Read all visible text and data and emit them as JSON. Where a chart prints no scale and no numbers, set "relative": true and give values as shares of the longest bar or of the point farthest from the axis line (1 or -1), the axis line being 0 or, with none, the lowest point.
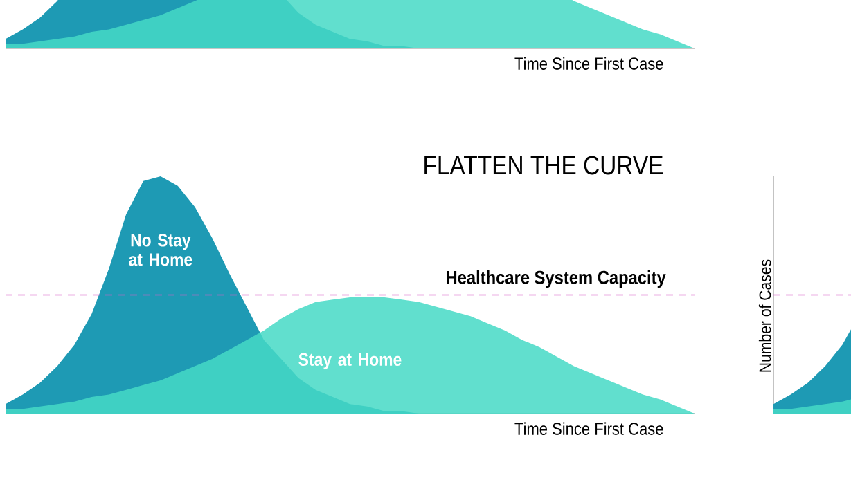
{
  "chart_data": [
    {
      "type": "area",
      "relative": true,
      "xlabel": "Time Since First Case",
      "categories": [
        null,
        null,
        null,
        null,
        null,
        null,
        null,
        null,
        null,
        null,
        null,
        null,
        null,
        null,
        null,
        null,
        null,
        null,
        null,
        null,
        null,
        null,
        null,
        null,
        null,
        null,
        null,
        null,
        null,
        null,
        null,
        null,
        null,
        null,
        null,
        null,
        null,
        null,
        null,
        null,
        null
      ],
      "series": [
        {
          "color": "#1e9ab4",
          "values": [
            0.04,
            0.08,
            0.13,
            0.2,
            0.29,
            0.42,
            0.61,
            0.84,
            0.98,
            1.0,
            0.96,
            0.87,
            0.74,
            0.59,
            0.45,
            0.31,
            0.23,
            0.15,
            0.1,
            0.07,
            0.04,
            0.03,
            0.01,
            0.01,
            0,
            0,
            0,
            0,
            0,
            0,
            0,
            0,
            0,
            0,
            0,
            0,
            0,
            0,
            0,
            0,
            0
          ]
        },
        {
          "color": "#45d9c6",
          "values": [
            0.02,
            0.02,
            0.03,
            0.04,
            0.05,
            0.07,
            0.08,
            0.1,
            0.12,
            0.14,
            0.17,
            0.2,
            0.23,
            0.27,
            0.31,
            0.35,
            0.4,
            0.44,
            0.47,
            0.48,
            0.49,
            0.49,
            0.49,
            0.48,
            0.47,
            0.45,
            0.43,
            0.41,
            0.38,
            0.35,
            0.31,
            0.28,
            0.24,
            0.2,
            0.17,
            0.14,
            0.11,
            0.08,
            0.06,
            0.03,
            0
          ]
        }
      ]
    },
    {
      "type": "area",
      "relative": true,
      "title": "FLATTEN THE CURVE",
      "xlabel": "Time Since First Case",
      "categories": [
        null,
        null,
        null,
        null,
        null,
        null,
        null,
        null,
        null,
        null,
        null,
        null,
        null,
        null,
        null,
        null,
        null,
        null,
        null,
        null,
        null,
        null,
        null,
        null,
        null,
        null,
        null,
        null,
        null,
        null,
        null,
        null,
        null,
        null,
        null,
        null,
        null,
        null,
        null,
        null,
        null
      ],
      "series": [
        {
          "name": "No Stay at Home",
          "color": "#1e9ab4",
          "values": [
            0.04,
            0.08,
            0.13,
            0.2,
            0.29,
            0.42,
            0.61,
            0.84,
            0.98,
            1.0,
            0.96,
            0.87,
            0.74,
            0.59,
            0.45,
            0.31,
            0.23,
            0.15,
            0.1,
            0.07,
            0.04,
            0.03,
            0.01,
            0.01,
            0,
            0,
            0,
            0,
            0,
            0,
            0,
            0,
            0,
            0,
            0,
            0,
            0,
            0,
            0,
            0,
            0
          ]
        },
        {
          "name": "Stay at Home",
          "color": "#45d9c6",
          "values": [
            0.02,
            0.02,
            0.03,
            0.04,
            0.05,
            0.07,
            0.08,
            0.1,
            0.12,
            0.14,
            0.17,
            0.2,
            0.23,
            0.27,
            0.31,
            0.35,
            0.4,
            0.44,
            0.47,
            0.48,
            0.49,
            0.49,
            0.49,
            0.48,
            0.47,
            0.45,
            0.43,
            0.41,
            0.38,
            0.35,
            0.31,
            0.28,
            0.24,
            0.2,
            0.17,
            0.14,
            0.11,
            0.08,
            0.06,
            0.03,
            0
          ]
        }
      ],
      "ref_lines": [
        {
          "axis": "y",
          "value": 0.5,
          "label": "Healthcare System Capacity",
          "color": "#d660c8",
          "line_style": "dashed"
        }
      ]
    },
    {
      "type": "area",
      "relative": true,
      "ylabel": "Number of Cases",
      "categories": [
        null,
        null,
        null,
        null,
        null,
        null,
        null,
        null,
        null,
        null,
        null,
        null,
        null,
        null,
        null,
        null,
        null,
        null,
        null,
        null,
        null,
        null,
        null,
        null,
        null,
        null,
        null,
        null,
        null,
        null,
        null,
        null,
        null,
        null,
        null,
        null,
        null,
        null,
        null,
        null,
        null
      ],
      "series": [
        {
          "color": "#1e9ab4",
          "values": [
            0.04,
            0.08,
            0.13,
            0.2,
            0.29,
            0.42,
            0.61,
            0.84,
            0.98,
            1.0,
            0.96,
            0.87,
            0.74,
            0.59,
            0.45,
            0.31,
            0.23,
            0.15,
            0.1,
            0.07,
            0.04,
            0.03,
            0.01,
            0.01,
            0,
            0,
            0,
            0,
            0,
            0,
            0,
            0,
            0,
            0,
            0,
            0,
            0,
            0,
            0,
            0,
            0
          ]
        },
        {
          "color": "#45d9c6",
          "values": [
            0.02,
            0.02,
            0.03,
            0.04,
            0.05,
            0.07,
            0.08,
            0.1,
            0.12,
            0.14,
            0.17,
            0.2,
            0.23,
            0.27,
            0.31,
            0.35,
            0.4,
            0.44,
            0.47,
            0.48,
            0.49,
            0.49,
            0.49,
            0.48,
            0.47,
            0.45,
            0.43,
            0.41,
            0.38,
            0.35,
            0.31,
            0.28,
            0.24,
            0.2,
            0.17,
            0.14,
            0.11,
            0.08,
            0.06,
            0.03,
            0
          ]
        }
      ],
      "ref_lines": [
        {
          "axis": "y",
          "value": 0.5,
          "color": "#d660c8",
          "line_style": "dashed"
        }
      ]
    }
  ]
}
